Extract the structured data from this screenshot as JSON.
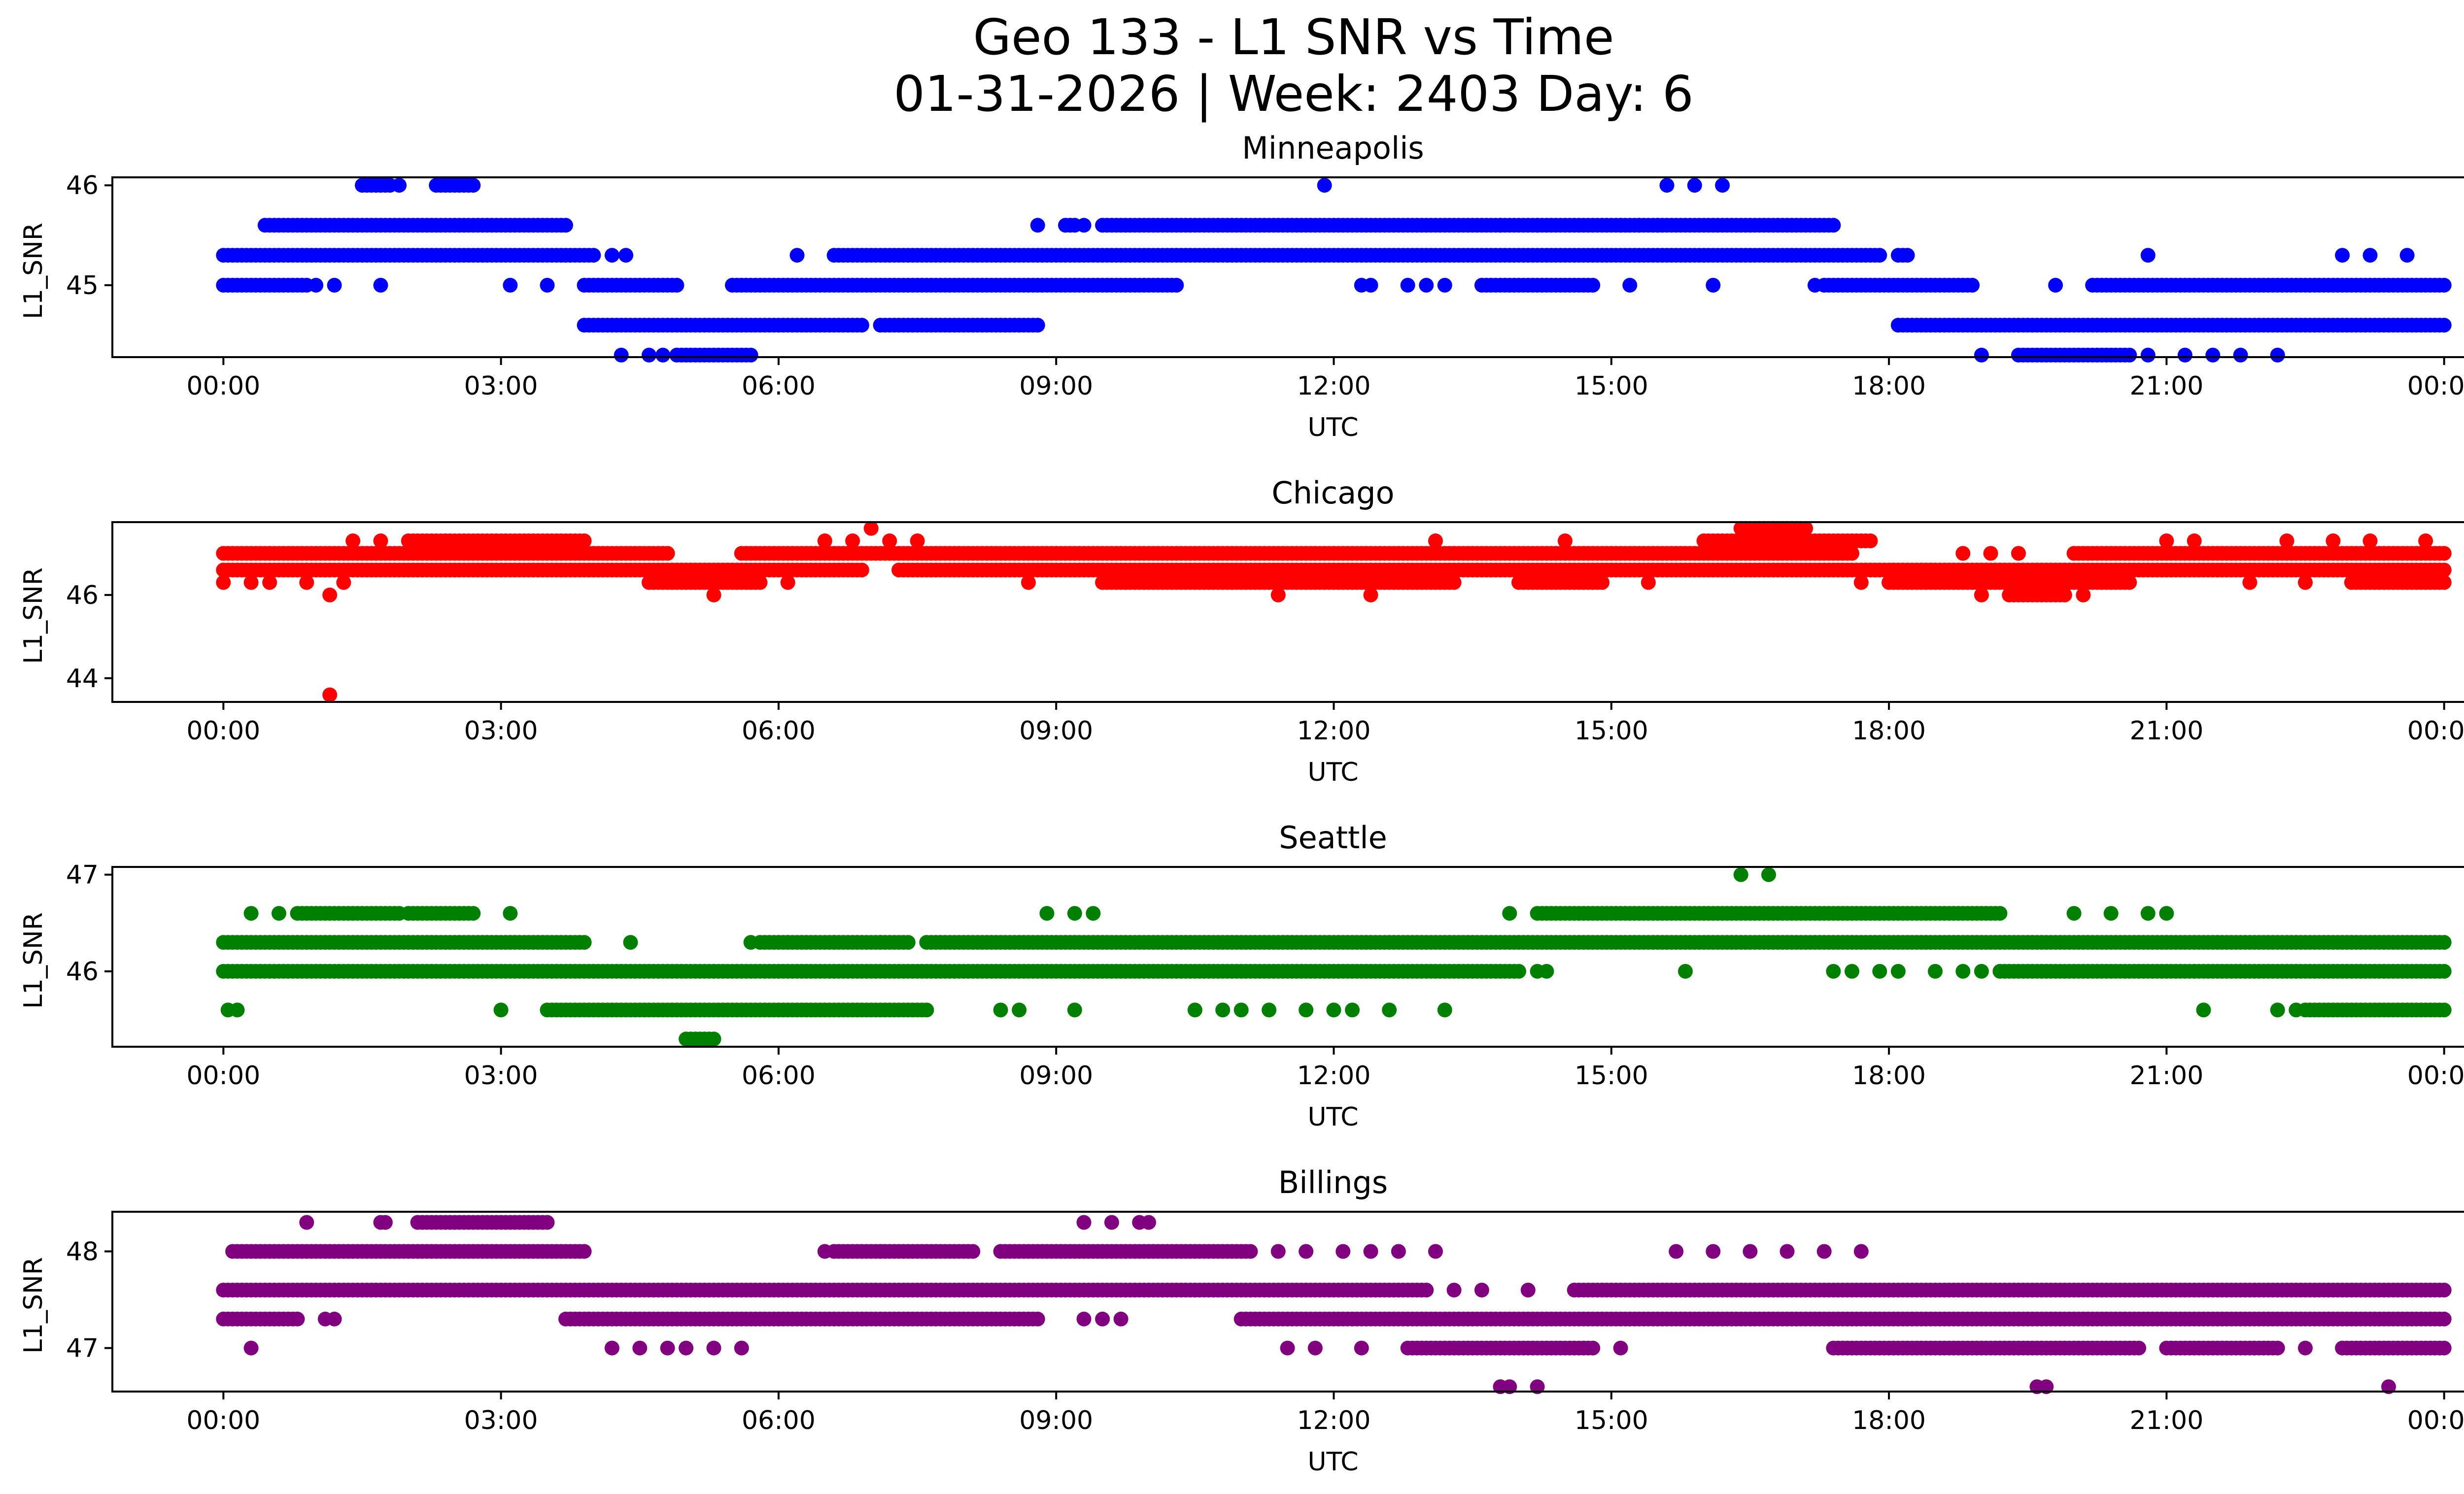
{
  "figure": {
    "title_line1": "Geo 133 - L1 SNR vs Time",
    "title_line2": "01-31-2026 | Week: 2403 Day: 6"
  },
  "chart_data": [
    {
      "type": "scatter",
      "title": "Minneapolis",
      "xlabel": "UTC",
      "ylabel": "L1_SNR",
      "color": "#0000ff",
      "x_unit": "hours UTC",
      "xlim": [
        -1.2,
        25.2
      ],
      "ylim": [
        44.28,
        46.08
      ],
      "x_ticks": [
        {
          "value": 0,
          "label": "00:00"
        },
        {
          "value": 3,
          "label": "03:00"
        },
        {
          "value": 6,
          "label": "06:00"
        },
        {
          "value": 9,
          "label": "09:00"
        },
        {
          "value": 12,
          "label": "12:00"
        },
        {
          "value": 15,
          "label": "15:00"
        },
        {
          "value": 18,
          "label": "18:00"
        },
        {
          "value": 21,
          "label": "21:00"
        },
        {
          "value": 24,
          "label": "00:00"
        }
      ],
      "y_ticks": [
        {
          "value": 45,
          "label": "45"
        },
        {
          "value": 46,
          "label": "46"
        }
      ],
      "segments": [
        {
          "y": 46.0,
          "ranges": [
            [
              1.5,
              1.8
            ],
            [
              2.3,
              2.7
            ]
          ],
          "points": [
            1.9,
            11.9,
            15.6,
            15.9,
            16.2
          ]
        },
        {
          "y": 45.6,
          "ranges": [
            [
              0.45,
              3.7
            ],
            [
              9.1,
              9.2
            ],
            [
              9.5,
              17.4
            ]
          ],
          "points": [
            8.8,
            9.3,
            13.8,
            14.2,
            15.1,
            15.3,
            15.5
          ]
        },
        {
          "y": 45.3,
          "ranges": [
            [
              0.0,
              4.0
            ],
            [
              6.6,
              17.9
            ],
            [
              18.1,
              18.2
            ]
          ],
          "points": [
            4.2,
            4.35,
            6.2,
            20.8,
            22.9,
            23.2,
            23.6
          ]
        },
        {
          "y": 45.0,
          "ranges": [
            [
              0.0,
              0.9
            ],
            [
              3.9,
              4.9
            ],
            [
              5.5,
              10.3
            ],
            [
              13.6,
              14.8
            ],
            [
              17.3,
              18.9
            ],
            [
              20.2,
              24.0
            ]
          ],
          "points": [
            1.0,
            1.2,
            1.7,
            3.1,
            3.5,
            12.3,
            12.4,
            12.8,
            13.0,
            13.2,
            15.2,
            16.1,
            17.2,
            19.8
          ]
        },
        {
          "y": 44.6,
          "ranges": [
            [
              3.9,
              6.9
            ],
            [
              7.1,
              8.8
            ],
            [
              18.1,
              24.0
            ]
          ],
          "points": []
        },
        {
          "y": 44.3,
          "ranges": [
            [
              4.9,
              5.7
            ],
            [
              19.4,
              20.6
            ]
          ],
          "points": [
            4.3,
            4.6,
            4.75,
            19.0,
            20.8,
            21.2,
            21.5,
            21.8,
            22.2
          ]
        }
      ]
    },
    {
      "type": "scatter",
      "title": "Chicago",
      "xlabel": "UTC",
      "ylabel": "L1_SNR",
      "color": "#ff0000",
      "x_unit": "hours UTC",
      "xlim": [
        -1.2,
        25.2
      ],
      "ylim": [
        43.43,
        47.75
      ],
      "x_ticks": [
        {
          "value": 0,
          "label": "00:00"
        },
        {
          "value": 3,
          "label": "03:00"
        },
        {
          "value": 6,
          "label": "06:00"
        },
        {
          "value": 9,
          "label": "09:00"
        },
        {
          "value": 12,
          "label": "12:00"
        },
        {
          "value": 15,
          "label": "15:00"
        },
        {
          "value": 18,
          "label": "18:00"
        },
        {
          "value": 21,
          "label": "21:00"
        },
        {
          "value": 24,
          "label": "00:00"
        }
      ],
      "y_ticks": [
        {
          "value": 44,
          "label": "44"
        },
        {
          "value": 46,
          "label": "46"
        }
      ],
      "segments": [
        {
          "y": 47.6,
          "ranges": [
            [
              16.4,
              17.1
            ]
          ],
          "points": [
            7.0
          ]
        },
        {
          "y": 47.3,
          "ranges": [
            [
              2.0,
              3.9
            ],
            [
              16.0,
              17.8
            ]
          ],
          "points": [
            1.4,
            1.7,
            2.4,
            6.5,
            6.8,
            7.2,
            7.5,
            13.1,
            14.5,
            21.0,
            21.3,
            22.3,
            22.8,
            23.2,
            23.8
          ]
        },
        {
          "y": 47.0,
          "ranges": [
            [
              0.0,
              4.8
            ],
            [
              5.6,
              17.6
            ],
            [
              20.0,
              24.0
            ]
          ],
          "points": [
            18.8,
            19.1,
            19.4
          ]
        },
        {
          "y": 46.6,
          "ranges": [
            [
              0.0,
              6.9
            ],
            [
              7.3,
              24.0
            ]
          ],
          "points": []
        },
        {
          "y": 46.3,
          "ranges": [
            [
              4.6,
              5.8
            ],
            [
              9.5,
              13.3
            ],
            [
              14.0,
              14.9
            ],
            [
              18.0,
              20.6
            ],
            [
              23.0,
              24.0
            ]
          ],
          "points": [
            0.0,
            0.3,
            0.5,
            0.9,
            1.3,
            6.1,
            8.7,
            15.4,
            17.7,
            21.9,
            22.5
          ]
        },
        {
          "y": 46.0,
          "ranges": [
            [
              19.3,
              19.9
            ]
          ],
          "points": [
            1.15,
            5.3,
            11.4,
            12.4,
            19.0,
            20.1
          ]
        },
        {
          "y": 43.6,
          "ranges": [],
          "points": [
            1.15
          ]
        }
      ]
    },
    {
      "type": "scatter",
      "title": "Seattle",
      "xlabel": "UTC",
      "ylabel": "L1_SNR",
      "color": "#008000",
      "x_unit": "hours UTC",
      "xlim": [
        -1.2,
        25.2
      ],
      "ylim": [
        45.22,
        47.08
      ],
      "x_ticks": [
        {
          "value": 0,
          "label": "00:00"
        },
        {
          "value": 3,
          "label": "03:00"
        },
        {
          "value": 6,
          "label": "06:00"
        },
        {
          "value": 9,
          "label": "09:00"
        },
        {
          "value": 12,
          "label": "12:00"
        },
        {
          "value": 15,
          "label": "15:00"
        },
        {
          "value": 18,
          "label": "18:00"
        },
        {
          "value": 21,
          "label": "21:00"
        },
        {
          "value": 24,
          "label": "00:00"
        }
      ],
      "y_ticks": [
        {
          "value": 46,
          "label": "46"
        },
        {
          "value": 47,
          "label": "47"
        }
      ],
      "segments": [
        {
          "y": 47.0,
          "ranges": [],
          "points": [
            16.4,
            16.7
          ]
        },
        {
          "y": 46.6,
          "ranges": [
            [
              0.8,
              1.9
            ],
            [
              2.0,
              2.7
            ],
            [
              14.2,
              19.2
            ]
          ],
          "points": [
            0.3,
            0.6,
            3.1,
            8.9,
            9.2,
            9.4,
            13.9,
            20.0,
            20.4,
            20.8,
            21.0
          ]
        },
        {
          "y": 46.3,
          "ranges": [
            [
              0.0,
              3.9
            ],
            [
              5.8,
              7.4
            ],
            [
              7.6,
              24.0
            ]
          ],
          "points": [
            4.4,
            5.7,
            6.1,
            6.6,
            7.1
          ]
        },
        {
          "y": 46.0,
          "ranges": [
            [
              0.0,
              14.0
            ],
            [
              19.2,
              24.0
            ]
          ],
          "points": [
            14.2,
            14.3,
            15.8,
            17.4,
            17.6,
            17.9,
            18.1,
            18.5,
            18.8,
            19.0
          ]
        },
        {
          "y": 45.6,
          "ranges": [
            [
              3.5,
              7.6
            ],
            [
              22.5,
              24.0
            ]
          ],
          "points": [
            0.05,
            0.15,
            3.0,
            8.4,
            8.6,
            9.2,
            10.5,
            10.8,
            11.0,
            11.3,
            11.7,
            12.0,
            12.2,
            12.6,
            13.2,
            21.4,
            22.2,
            22.4
          ]
        },
        {
          "y": 45.3,
          "ranges": [
            [
              5.0,
              5.3
            ]
          ],
          "points": []
        }
      ]
    },
    {
      "type": "scatter",
      "title": "Billings",
      "xlabel": "UTC",
      "ylabel": "L1_SNR",
      "color": "#800080",
      "x_unit": "hours UTC",
      "xlim": [
        -1.2,
        25.2
      ],
      "ylim": [
        46.55,
        48.41
      ],
      "x_ticks": [
        {
          "value": 0,
          "label": "00:00"
        },
        {
          "value": 3,
          "label": "03:00"
        },
        {
          "value": 6,
          "label": "06:00"
        },
        {
          "value": 9,
          "label": "09:00"
        },
        {
          "value": 12,
          "label": "12:00"
        },
        {
          "value": 15,
          "label": "15:00"
        },
        {
          "value": 18,
          "label": "18:00"
        },
        {
          "value": 21,
          "label": "21:00"
        },
        {
          "value": 24,
          "label": "00:00"
        }
      ],
      "y_ticks": [
        {
          "value": 47,
          "label": "47"
        },
        {
          "value": 48,
          "label": "48"
        }
      ],
      "segments": [
        {
          "y": 48.3,
          "ranges": [
            [
              2.1,
              3.5
            ]
          ],
          "points": [
            0.9,
            1.7,
            1.75,
            9.3,
            9.6,
            9.9,
            10.0
          ]
        },
        {
          "y": 48.0,
          "ranges": [
            [
              0.1,
              3.9
            ],
            [
              6.6,
              8.1
            ],
            [
              8.4,
              11.1
            ]
          ],
          "points": [
            6.5,
            7.1,
            11.4,
            11.7,
            12.1,
            12.4,
            12.7,
            13.1,
            15.7,
            16.1,
            16.5,
            16.9,
            17.3,
            17.7
          ]
        },
        {
          "y": 47.6,
          "ranges": [
            [
              0.0,
              13.0
            ],
            [
              14.6,
              24.0
            ]
          ],
          "points": [
            13.3,
            13.6,
            14.1
          ]
        },
        {
          "y": 47.3,
          "ranges": [
            [
              0.0,
              0.8
            ],
            [
              3.7,
              8.8
            ],
            [
              11.0,
              24.0
            ]
          ],
          "points": [
            1.1,
            1.2,
            9.3,
            9.5,
            9.7
          ]
        },
        {
          "y": 47.0,
          "ranges": [
            [
              12.8,
              14.8
            ],
            [
              17.4,
              20.7
            ],
            [
              21.0,
              22.2
            ],
            [
              22.9,
              24.0
            ]
          ],
          "points": [
            0.3,
            4.2,
            4.5,
            4.8,
            5.0,
            5.3,
            5.6,
            11.5,
            11.8,
            12.3,
            15.1,
            22.5
          ]
        },
        {
          "y": 46.6,
          "ranges": [],
          "points": [
            13.8,
            13.9,
            14.2,
            19.6,
            19.7,
            23.4
          ]
        }
      ]
    }
  ]
}
